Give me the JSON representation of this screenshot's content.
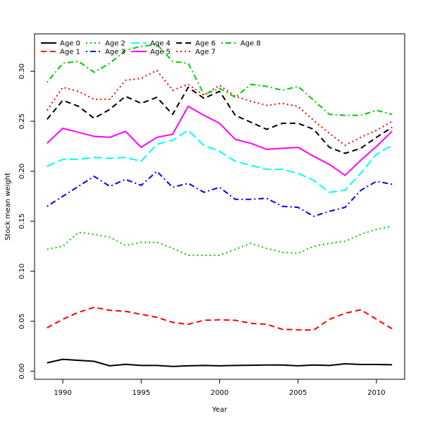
{
  "chart_data": {
    "type": "line",
    "title": "",
    "xlabel": "Year",
    "ylabel": "Stock mean weight",
    "xlim": [
      1988.2,
      2011.8
    ],
    "ylim": [
      -0.008,
      0.3375
    ],
    "x_ticks": [
      1990,
      1995,
      2000,
      2005,
      2010
    ],
    "y_ticks": [
      0.0,
      0.05,
      0.1,
      0.15,
      0.2,
      0.25,
      0.3
    ],
    "y_tick_labels": [
      "0.00",
      "0.05",
      "0.10",
      "0.15",
      "0.20",
      "0.25",
      "0.30"
    ],
    "legend_position": "top-left",
    "x": [
      1989,
      1990,
      1991,
      1992,
      1993,
      1994,
      1995,
      1996,
      1997,
      1998,
      1999,
      2000,
      2001,
      2002,
      2003,
      2004,
      2005,
      2006,
      2007,
      2008,
      2009,
      2010,
      2011
    ],
    "series": [
      {
        "name": "Age 0",
        "color": "#000000",
        "dash": "solid",
        "values": [
          0.0085,
          0.012,
          0.011,
          0.01,
          0.0055,
          0.007,
          0.0058,
          0.0058,
          0.0048,
          0.0055,
          0.0058,
          0.0055,
          0.0058,
          0.006,
          0.0063,
          0.0063,
          0.0055,
          0.0063,
          0.0058,
          0.0075,
          0.0068,
          0.0068,
          0.0065
        ]
      },
      {
        "name": "Age 1",
        "color": "#ff0000",
        "dash": "dashed",
        "values": [
          0.0435,
          0.052,
          0.059,
          0.064,
          0.061,
          0.06,
          0.057,
          0.054,
          0.049,
          0.047,
          0.051,
          0.0515,
          0.051,
          0.048,
          0.047,
          0.042,
          0.0415,
          0.0412,
          0.052,
          0.058,
          0.0615,
          0.052,
          0.0425
        ]
      },
      {
        "name": "Age 2",
        "color": "#00cd00",
        "dash": "dotted",
        "values": [
          0.122,
          0.125,
          0.139,
          0.137,
          0.134,
          0.126,
          0.129,
          0.129,
          0.123,
          0.116,
          0.116,
          0.116,
          0.122,
          0.128,
          0.123,
          0.119,
          0.118,
          0.125,
          0.128,
          0.13,
          0.137,
          0.142,
          0.145
        ]
      },
      {
        "name": "Age 3",
        "color": "#0000ff",
        "dash": "dotdash",
        "values": [
          0.165,
          0.175,
          0.185,
          0.195,
          0.185,
          0.192,
          0.186,
          0.2,
          0.184,
          0.188,
          0.179,
          0.184,
          0.172,
          0.172,
          0.173,
          0.165,
          0.164,
          0.155,
          0.16,
          0.164,
          0.181,
          0.19,
          0.187
        ]
      },
      {
        "name": "Age 4",
        "color": "#00ffff",
        "dash": "longdash",
        "values": [
          0.205,
          0.212,
          0.212,
          0.214,
          0.213,
          0.214,
          0.21,
          0.227,
          0.231,
          0.241,
          0.226,
          0.22,
          0.21,
          0.206,
          0.202,
          0.202,
          0.198,
          0.191,
          0.179,
          0.181,
          0.198,
          0.217,
          0.226
        ]
      },
      {
        "name": "Age 5",
        "color": "#ff00ff",
        "dash": "solid",
        "values": [
          0.228,
          0.243,
          0.239,
          0.235,
          0.234,
          0.24,
          0.224,
          0.234,
          0.237,
          0.265,
          0.256,
          0.248,
          0.232,
          0.228,
          0.222,
          0.223,
          0.224,
          0.215,
          0.207,
          0.196,
          0.211,
          0.225,
          0.24
        ]
      },
      {
        "name": "Age 6",
        "color": "#000000",
        "dash": "dashed",
        "values": [
          0.252,
          0.271,
          0.265,
          0.253,
          0.262,
          0.275,
          0.268,
          0.274,
          0.257,
          0.284,
          0.273,
          0.28,
          0.256,
          0.249,
          0.242,
          0.248,
          0.248,
          0.242,
          0.224,
          0.218,
          0.223,
          0.234,
          0.244
        ]
      },
      {
        "name": "Age 7",
        "color": "#ff0000",
        "dash": "dotted",
        "values": [
          0.261,
          0.284,
          0.28,
          0.272,
          0.272,
          0.291,
          0.293,
          0.301,
          0.281,
          0.287,
          0.276,
          0.286,
          0.275,
          0.27,
          0.266,
          0.268,
          0.265,
          0.251,
          0.238,
          0.226,
          0.234,
          0.241,
          0.25
        ]
      },
      {
        "name": "Age 8",
        "color": "#00cd00",
        "dash": "dotdash",
        "values": [
          0.289,
          0.308,
          0.31,
          0.299,
          0.308,
          0.321,
          0.325,
          0.327,
          0.31,
          0.308,
          0.277,
          0.283,
          0.274,
          0.287,
          0.285,
          0.281,
          0.285,
          0.271,
          0.257,
          0.256,
          0.256,
          0.261,
          0.257
        ]
      }
    ]
  }
}
